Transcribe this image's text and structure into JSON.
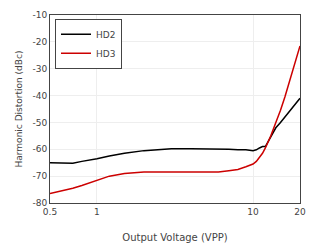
{
  "chart_data": {
    "type": "line",
    "title": "",
    "xlabel": "Output Voltage (VPP)",
    "ylabel": "Harmonic Distortion (dBc)",
    "x": [
      0.5,
      0.6,
      0.7,
      0.8,
      0.9,
      1.0,
      1.2,
      1.5,
      2.0,
      2.5,
      3.0,
      4.0,
      5.0,
      6.0,
      7.0,
      8.0,
      9.0,
      10.0,
      10.5,
      11.0,
      11.5,
      12.0,
      13.0,
      14.0,
      15.0,
      16.0,
      17.0,
      18.0,
      19.0,
      20.0
    ],
    "series": [
      {
        "name": "HD2",
        "color": "#000000",
        "values": [
          -65.0,
          -65.2,
          -65.2,
          -64.5,
          -64.0,
          -63.5,
          -62.5,
          -61.5,
          -60.5,
          -60.0,
          -59.8,
          -59.8,
          -59.8,
          -60.0,
          -60.0,
          -60.2,
          -60.2,
          -60.5,
          -60.2,
          -59.5,
          -59.0,
          -59.0,
          -55.5,
          -52.0,
          -50.0,
          -48.0,
          -46.0,
          -44.0,
          -42.5,
          -41.0
        ]
      },
      {
        "name": "HD3",
        "color": "#cc0000",
        "values": [
          -76.5,
          -75.5,
          -74.5,
          -73.5,
          -72.5,
          -71.5,
          -70.0,
          -69.0,
          -68.5,
          -68.5,
          -68.5,
          -68.5,
          -68.5,
          -68.5,
          -68.0,
          -67.5,
          -66.5,
          -65.5,
          -64.5,
          -63.0,
          -61.5,
          -59.5,
          -55.0,
          -50.0,
          -45.5,
          -40.5,
          -35.5,
          -30.5,
          -26.0,
          -21.5
        ]
      }
    ],
    "log": "x",
    "xlim": [
      0.5,
      20
    ],
    "ylim": [
      -80,
      -10
    ],
    "xticks": [
      0.5,
      1,
      10,
      20
    ],
    "yticks": [
      -80,
      -70,
      -60,
      -50,
      -40,
      -30,
      -20,
      -10
    ],
    "grid": true,
    "legend": "upper left"
  }
}
